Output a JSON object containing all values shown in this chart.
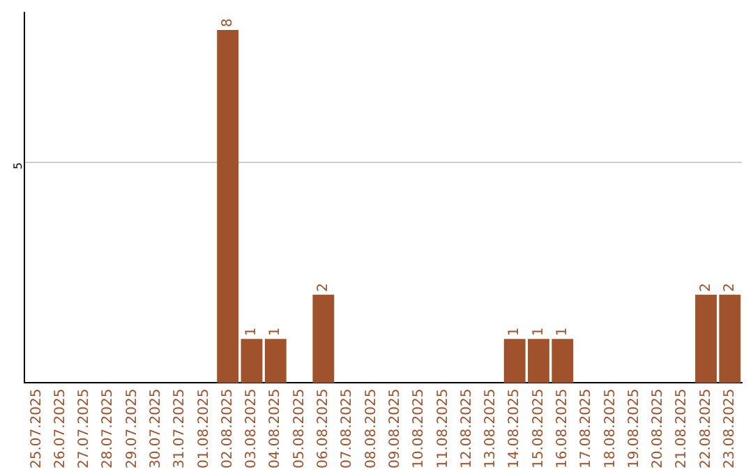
{
  "chart_data": {
    "type": "bar",
    "categories": [
      "25.07.2025",
      "26.07.2025",
      "27.07.2025",
      "28.07.2025",
      "29.07.2025",
      "30.07.2025",
      "31.07.2025",
      "01.08.2025",
      "02.08.2025",
      "03.08.2025",
      "04.08.2025",
      "05.08.2025",
      "06.08.2025",
      "07.08.2025",
      "08.08.2025",
      "09.08.2025",
      "10.08.2025",
      "11.08.2025",
      "12.08.2025",
      "13.08.2025",
      "14.08.2025",
      "15.08.2025",
      "16.08.2025",
      "17.08.2025",
      "18.08.2025",
      "19.08.2025",
      "20.08.2025",
      "21.08.2025",
      "22.08.2025",
      "23.08.2025"
    ],
    "values": [
      0,
      0,
      0,
      0,
      0,
      0,
      0,
      0,
      8,
      1,
      1,
      0,
      2,
      0,
      0,
      0,
      0,
      0,
      0,
      0,
      1,
      1,
      1,
      0,
      0,
      0,
      0,
      0,
      2,
      2
    ],
    "value_labels": [
      null,
      null,
      null,
      null,
      null,
      null,
      null,
      null,
      "8",
      "1",
      "1",
      null,
      "2",
      null,
      null,
      null,
      null,
      null,
      null,
      null,
      "1",
      "1",
      "1",
      null,
      null,
      null,
      null,
      null,
      "2",
      "2"
    ],
    "color": "#a0522d",
    "ylim": [
      0,
      8.4
    ],
    "yticks": [
      5
    ],
    "grid": "y",
    "legend": false
  }
}
